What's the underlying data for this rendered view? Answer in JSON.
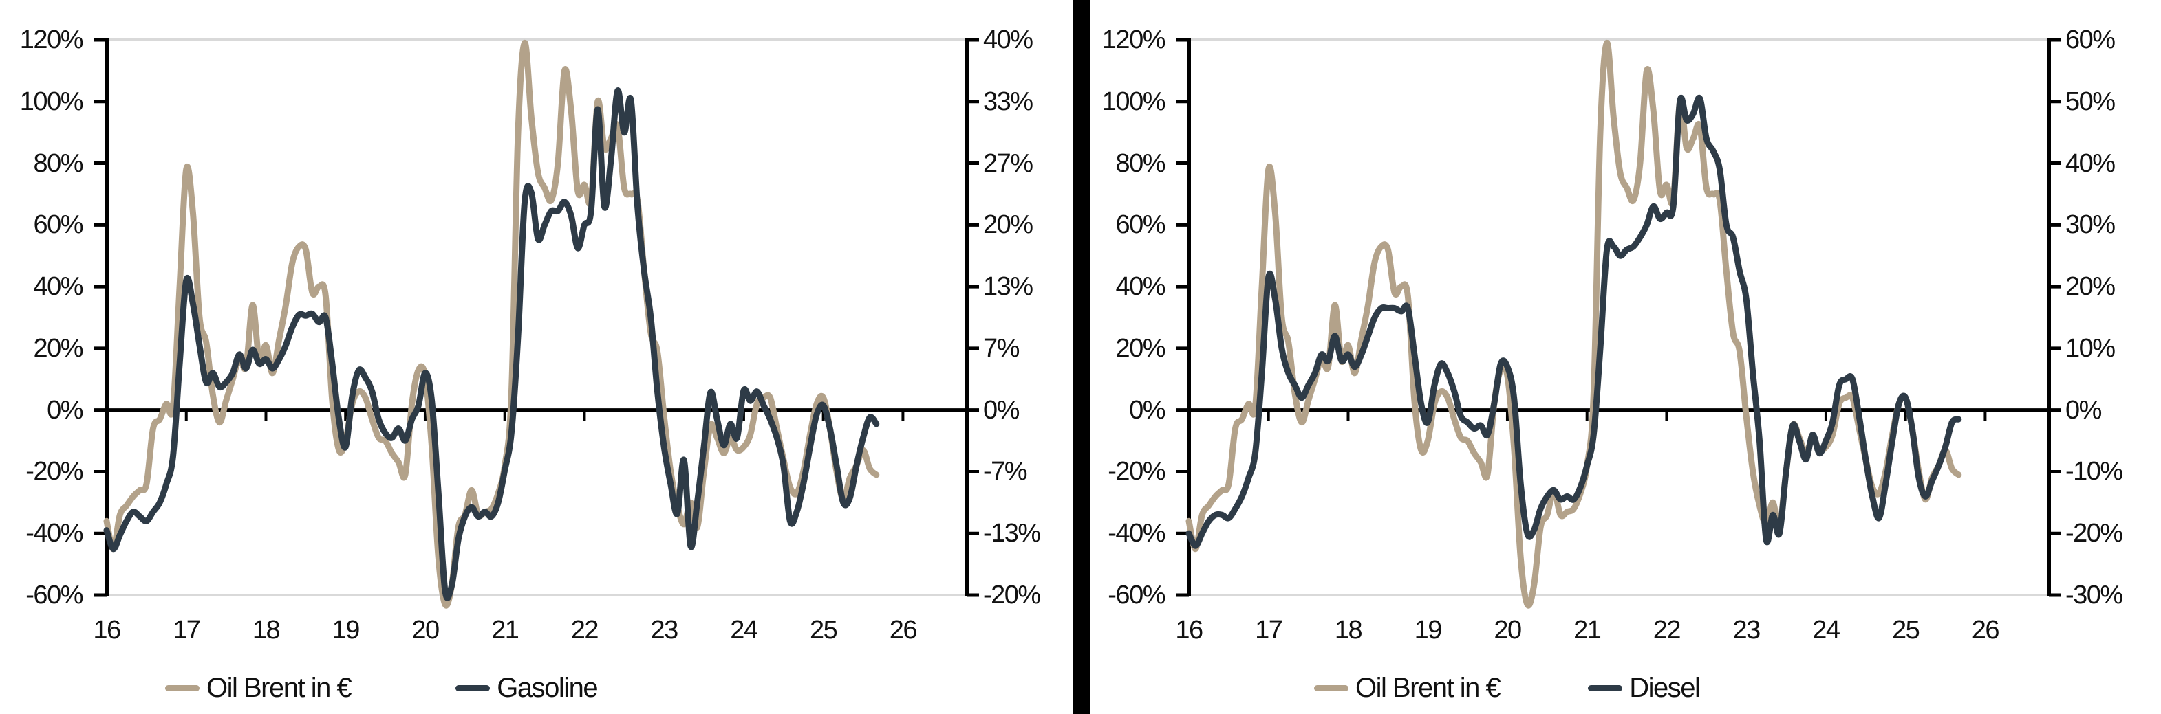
{
  "page": {
    "background": "#ffffff",
    "divider_color": "#000000"
  },
  "colors": {
    "brent": "#B3A28A",
    "product": "#2E3B47",
    "gridline": "#D9D9D9",
    "axis": "#000000"
  },
  "charts": [
    {
      "name": "brent-vs-gasoline",
      "y_axis_left": {
        "labels": [
          "120%",
          "100%",
          "80%",
          "60%",
          "40%",
          "20%",
          "0%",
          "-20%",
          "-40%",
          "-60%"
        ]
      },
      "y_axis_right": {
        "labels": [
          "40%",
          "33%",
          "27%",
          "20%",
          "13%",
          "7%",
          "0%",
          "-7%",
          "-13%",
          "-20%"
        ]
      },
      "x_axis": {
        "labels": [
          "16",
          "17",
          "18",
          "19",
          "20",
          "21",
          "22",
          "23",
          "24",
          "25",
          "26"
        ]
      },
      "legend": [
        {
          "label": "Oil Brent in €",
          "color": "#B3A28A"
        },
        {
          "label": "Gasoline",
          "color": "#2E3B47"
        }
      ]
    },
    {
      "name": "brent-vs-diesel",
      "y_axis_left": {
        "labels": [
          "120%",
          "100%",
          "80%",
          "60%",
          "40%",
          "20%",
          "0%",
          "-20%",
          "-40%",
          "-60%"
        ]
      },
      "y_axis_right": {
        "labels": [
          "60%",
          "50%",
          "40%",
          "30%",
          "20%",
          "10%",
          "0%",
          "-10%",
          "-20%",
          "-30%"
        ]
      },
      "x_axis": {
        "labels": [
          "16",
          "17",
          "18",
          "19",
          "20",
          "21",
          "22",
          "23",
          "24",
          "25",
          "26"
        ]
      },
      "legend": [
        {
          "label": "Oil Brent in €",
          "color": "#B3A28A"
        },
        {
          "label": "Diesel",
          "color": "#2E3B47"
        }
      ]
    }
  ],
  "chart_data": [
    {
      "type": "line",
      "title": "",
      "x_unit": "year (monthly values, Jan 2016 - Sep 2025)",
      "x_start": 2016.0,
      "x_step_months": 1,
      "axes": {
        "left_range": [
          -60,
          120
        ],
        "right_range": [
          -20,
          40
        ],
        "x_range": [
          16,
          26.8
        ],
        "x_tick_years": [
          16,
          17,
          18,
          19,
          20,
          21,
          22,
          23,
          24,
          25,
          26
        ],
        "grid": "top and bottom gray lines, black zero line",
        "legend_position": "bottom"
      },
      "series": [
        {
          "name": "Oil Brent in €",
          "axis": "left",
          "color": "#B3A28A",
          "values": [
            -36,
            -45,
            -34,
            -31,
            -28,
            -26,
            -24,
            -6,
            -3,
            2,
            1,
            40,
            78,
            64,
            30,
            22,
            5,
            -4,
            3,
            10,
            17,
            14,
            34,
            16,
            21,
            12,
            23,
            34,
            48,
            53,
            52,
            38,
            40,
            37,
            3,
            -13,
            -10,
            2,
            6,
            4,
            -3,
            -9,
            -10,
            -14,
            -17,
            -21,
            2,
            13,
            11,
            -12,
            -48,
            -63,
            -57,
            -38,
            -34,
            -26,
            -34,
            -33,
            -32,
            -27,
            -18,
            5,
            90,
            119,
            95,
            77,
            72,
            68,
            80,
            110,
            97,
            71,
            73,
            68,
            100,
            85,
            88,
            92,
            72,
            70,
            68,
            45,
            25,
            19,
            -2,
            -20,
            -31,
            -37,
            -30,
            -38,
            -20,
            -5,
            -9,
            -14,
            -9,
            -13,
            -12,
            -8,
            2,
            4,
            4,
            -6,
            -16,
            -25,
            -27,
            -20,
            -8,
            2,
            4,
            -6,
            -20,
            -29,
            -22,
            -18,
            -13,
            -19,
            -21
          ]
        },
        {
          "name": "Gasoline",
          "axis": "right",
          "color": "#2E3B47",
          "values": [
            -13,
            -15,
            -13.5,
            -12,
            -11,
            -11.5,
            -12,
            -11,
            -10,
            -8,
            -5,
            5,
            14,
            11.5,
            7,
            3,
            4,
            2.5,
            3,
            4,
            6,
            4.5,
            6.5,
            5,
            5.5,
            4.5,
            5.5,
            7,
            9,
            10.3,
            10.2,
            10.4,
            9.5,
            10,
            5,
            -1,
            -4,
            1.5,
            4.3,
            3.5,
            2,
            -1,
            -2.5,
            -3,
            -2,
            -3.3,
            -1,
            0.5,
            4,
            1,
            -9,
            -19.5,
            -19,
            -14,
            -11.5,
            -10.5,
            -11.5,
            -11,
            -11.5,
            -10,
            -6.5,
            -2.5,
            8,
            22.5,
            23.5,
            18.5,
            20,
            21.5,
            21.5,
            22.5,
            21,
            17.5,
            20,
            21.5,
            32.5,
            22,
            27,
            34.5,
            30,
            33.5,
            22,
            15,
            10,
            2,
            -4,
            -8,
            -11.2,
            -5.4,
            -14.7,
            -10,
            -4,
            1.9,
            -1,
            -3.8,
            -1.5,
            -3,
            2.1,
            1,
            2,
            0.5,
            -1,
            -3,
            -6,
            -12,
            -11,
            -8,
            -4,
            -0.5,
            0.5,
            -2,
            -6,
            -10,
            -9.5,
            -6,
            -3,
            -0.8,
            -1.5
          ]
        }
      ]
    },
    {
      "type": "line",
      "title": "",
      "x_unit": "year (monthly values, Jan 2016 - Sep 2025)",
      "x_start": 2016.0,
      "x_step_months": 1,
      "axes": {
        "left_range": [
          -60,
          120
        ],
        "right_range": [
          -30,
          60
        ],
        "x_range": [
          16,
          26.8
        ],
        "x_tick_years": [
          16,
          17,
          18,
          19,
          20,
          21,
          22,
          23,
          24,
          25,
          26
        ],
        "grid": "top and bottom gray lines, black zero line",
        "legend_position": "bottom"
      },
      "series": [
        {
          "name": "Oil Brent in €",
          "axis": "left",
          "color": "#B3A28A",
          "values": [
            -36,
            -45,
            -34,
            -31,
            -28,
            -26,
            -24,
            -6,
            -3,
            2,
            1,
            40,
            78,
            64,
            30,
            22,
            5,
            -4,
            3,
            10,
            17,
            14,
            34,
            16,
            21,
            12,
            23,
            34,
            48,
            53,
            52,
            38,
            40,
            37,
            3,
            -13,
            -10,
            2,
            6,
            4,
            -3,
            -9,
            -10,
            -14,
            -17,
            -21,
            2,
            13,
            11,
            -12,
            -48,
            -63,
            -57,
            -38,
            -34,
            -26,
            -34,
            -33,
            -32,
            -27,
            -18,
            5,
            90,
            119,
            95,
            77,
            72,
            68,
            80,
            110,
            97,
            71,
            73,
            68,
            100,
            85,
            88,
            92,
            72,
            70,
            68,
            45,
            25,
            19,
            -2,
            -20,
            -31,
            -37,
            -30,
            -38,
            -20,
            -5,
            -9,
            -14,
            -9,
            -13,
            -12,
            -8,
            2,
            4,
            4,
            -6,
            -16,
            -25,
            -27,
            -20,
            -8,
            2,
            4,
            -6,
            -20,
            -29,
            -22,
            -18,
            -13,
            -19,
            -21
          ]
        },
        {
          "name": "Diesel",
          "axis": "right",
          "color": "#2E3B47",
          "values": [
            -20,
            -22,
            -20,
            -18,
            -17,
            -17,
            -17.5,
            -16,
            -14,
            -11,
            -7,
            6,
            21.5,
            18,
            10,
            6,
            4,
            2,
            4,
            6,
            9,
            8,
            12,
            8,
            9,
            7,
            9,
            12,
            15,
            16.5,
            16.5,
            16.5,
            16,
            16.5,
            9,
            1,
            -2,
            4,
            7.5,
            6,
            3,
            -1,
            -2,
            -3,
            -2.5,
            -4,
            1,
            7.5,
            7,
            2,
            -12,
            -20,
            -19.5,
            -16,
            -14,
            -13,
            -14.5,
            -14,
            -14.5,
            -12.5,
            -9,
            -4,
            10,
            26,
            26.5,
            25,
            26,
            26.5,
            28,
            30,
            33,
            31,
            32,
            33,
            50,
            47,
            48,
            50.5,
            44,
            42,
            39,
            30,
            28,
            22.5,
            18,
            6,
            -5,
            -21,
            -17,
            -20,
            -10,
            -2.5,
            -5,
            -8,
            -4,
            -7,
            -5,
            -2,
            4,
            5,
            5,
            -1,
            -8,
            -14,
            -17.5,
            -12,
            -5,
            1,
            2,
            -3,
            -11,
            -14,
            -11.5,
            -9,
            -6,
            -2,
            -1.5
          ]
        }
      ]
    }
  ]
}
